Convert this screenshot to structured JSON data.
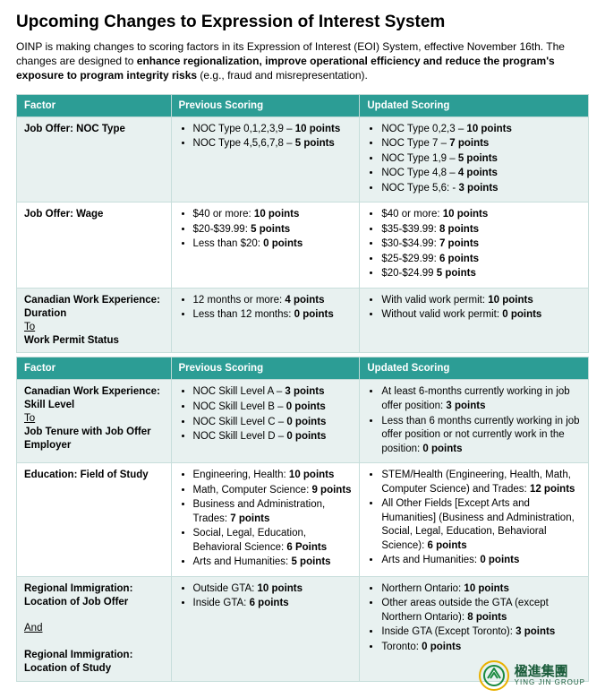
{
  "title": "Upcoming Changes to Expression of Interest System",
  "intro_html": "OINP is making changes to scoring factors in its Expression of Interest (EOI) System, effective November 16th.  The changes are designed to <b>enhance regionalization, improve operational efficiency and reduce the program's exposure to program integrity risks</b> (e.g., fraud and misrepresentation).",
  "headers": {
    "factor": "Factor",
    "prev": "Previous Scoring",
    "upd": "Updated Scoring"
  },
  "table1": [
    {
      "factor_html": "Job Offer: NOC Type",
      "prev": [
        "NOC Type 0,1,2,3,9 – <b>10 points</b>",
        "NOC Type 4,5,6,7,8 – <b>5 points</b>"
      ],
      "upd": [
        "NOC Type 0,2,3 – <b>10 points</b>",
        "NOC Type 7 – <b>7 points</b>",
        "NOC Type 1,9 – <b>5 points</b>",
        "NOC Type 4,8 – <b>4 points</b>",
        "NOC Type 5,6: - <b>3 points</b>"
      ]
    },
    {
      "factor_html": "Job Offer: Wage",
      "prev": [
        "$40 or more: <b>10 points</b>",
        "$20-$39.99: <b>5 points</b>",
        "Less than $20: <b>0 points</b>"
      ],
      "upd": [
        "$40 or more: <b>10 points</b>",
        "$35-$39.99: <b>8 points</b>",
        "$30-$34.99: <b>7 points</b>",
        "$25-$29.99: <b>6 points</b>",
        "$20-$24.99 <b>5 points</b>"
      ]
    },
    {
      "factor_html": "Canadian Work Experience: Duration<br><span class=\"sub\">To</span><br>Work Permit Status",
      "prev": [
        "12 months or more: <b>4 points</b>",
        "Less than 12 months: <b>0 points</b>"
      ],
      "upd": [
        "With valid work permit: <b>10 points</b>",
        "Without valid work permit: <b>0 points</b>"
      ]
    }
  ],
  "table2": [
    {
      "factor_html": "Canadian Work Experience: Skill Level<br><span class=\"sub\">To</span><br>Job Tenure with Job Offer Employer",
      "prev": [
        "NOC Skill Level A – <b>3 points</b>",
        "NOC Skill Level B – <b>0 points</b>",
        "NOC Skill Level C – <b>0 points</b>",
        "NOC Skill Level D – <b>0 points</b>"
      ],
      "upd": [
        "At least 6-months currently working in job offer position: <b>3 points</b>",
        "Less than 6 months currently working in job offer position or not currently work in the position: <b>0 points</b>"
      ]
    },
    {
      "factor_html": "Education: Field of Study",
      "prev": [
        "Engineering, Health: <b>10 points</b>",
        "Math, Computer Science: <b>9 points</b>",
        "Business and Administration, Trades: <b>7 points</b>",
        "Social, Legal, Education, Behavioral Science: <b>6 Points</b>",
        "Arts and Humanities: <b>5 points</b>"
      ],
      "upd": [
        "STEM/Health (Engineering, Health, Math, Computer Science) and Trades: <b>12 points</b>",
        "All Other Fields [Except Arts and Humanities] (Business and Administration, Social, Legal, Education, Behavioral Science): <b>6 points</b>",
        "Arts and Humanities: <b>0 points</b>"
      ]
    },
    {
      "factor_html": "Regional Immigration: Location of Job Offer<br><br><span class=\"sub\">And</span><br><br>Regional Immigration: Location of Study",
      "prev": [
        "Outside GTA: <b>10 points</b>",
        "Inside GTA: <b>6 points</b>"
      ],
      "upd": [
        "Northern Ontario: <b>10 points</b>",
        "Other areas outside the GTA (except Northern Ontario): <b>8 points</b>",
        "Inside GTA (Except Toronto): <b>3 points</b>",
        "Toronto: <b>0 points</b>"
      ]
    }
  ],
  "logo": {
    "name": "楹進集團",
    "sub": "YING JIN GROUP"
  }
}
